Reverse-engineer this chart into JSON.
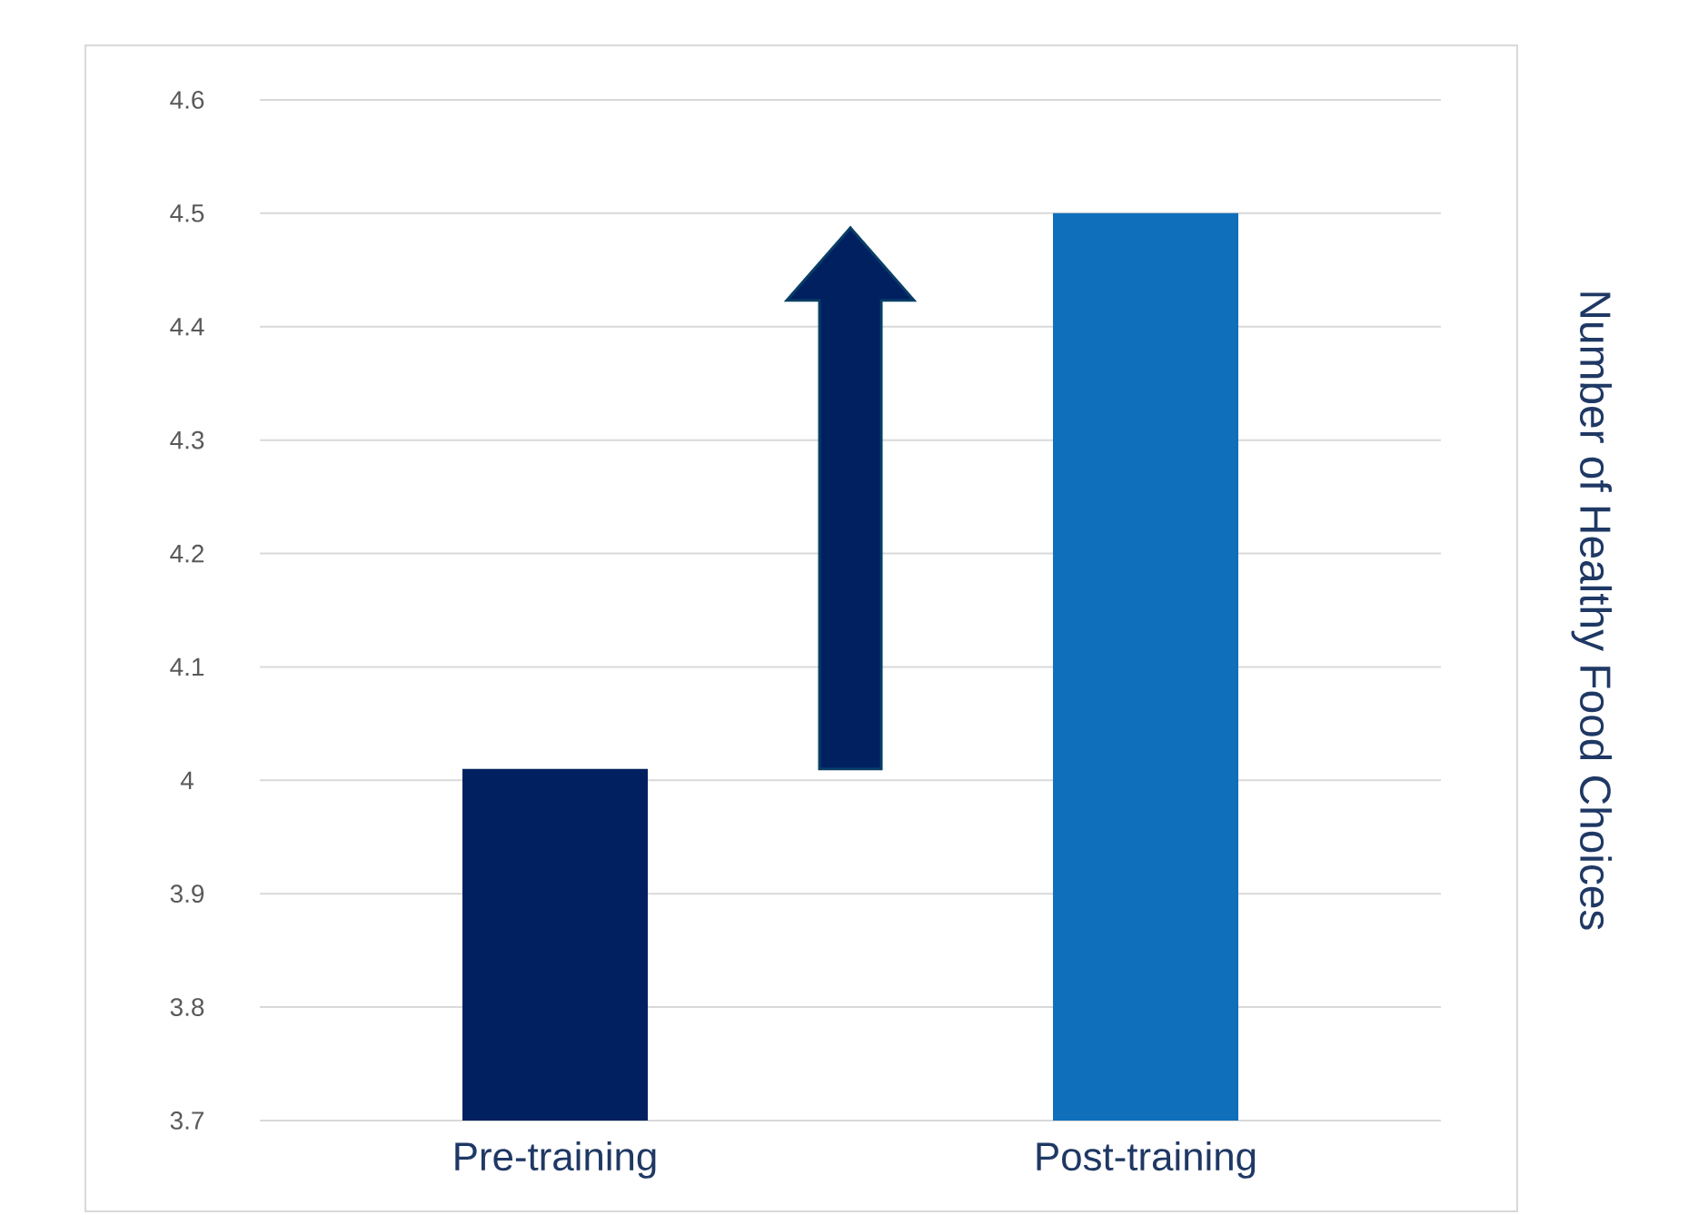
{
  "chart_data": {
    "type": "bar",
    "ylabel": "Number of Healthy Food Choices",
    "categories": [
      "Pre-training",
      "Post-training"
    ],
    "values": [
      4.01,
      4.5
    ],
    "colors": [
      "#002060",
      "#0f6fba"
    ],
    "ylim": [
      3.7,
      4.6
    ],
    "yticks": [
      3.7,
      3.8,
      3.9,
      4,
      4.1,
      4.2,
      4.3,
      4.4,
      4.5,
      4.6
    ],
    "grid": "y"
  }
}
